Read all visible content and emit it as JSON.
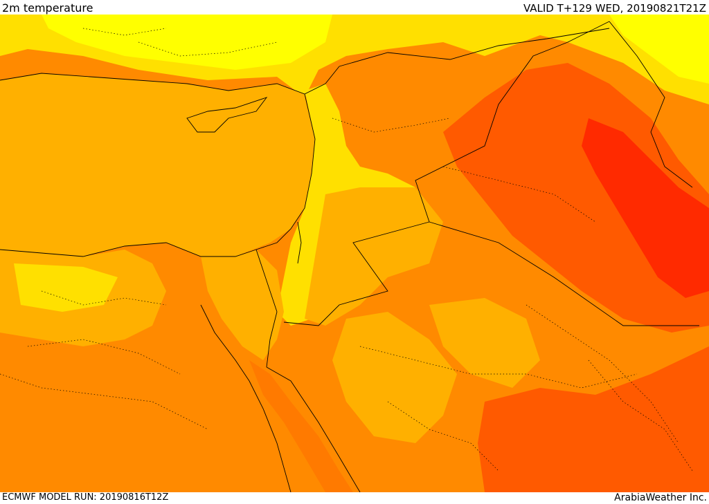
{
  "header": {
    "title": "2m temperature",
    "valid_time": "VALID T+129 WED, 20190821T21Z"
  },
  "footer": {
    "model_run": "ECMWF MODEL RUN: 20190816T12Z",
    "provider": "ArabiaWeather Inc."
  },
  "map": {
    "variable": "2m temperature",
    "palette": {
      "very-warm": "#ffff00",
      "warm": "#ffe000",
      "hot": "#ffb000",
      "very-hot": "#ff8a00",
      "extreme": "#ff5a00",
      "severe": "#ff2a00"
    }
  }
}
